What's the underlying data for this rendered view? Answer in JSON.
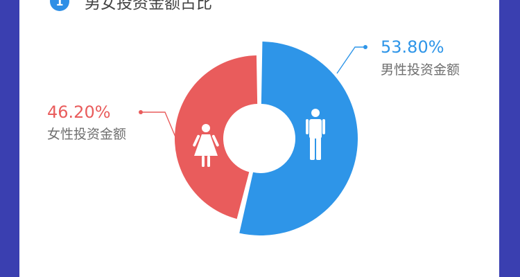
{
  "section": {
    "index": "1",
    "title": "男女投资金额占比"
  },
  "colors": {
    "male": "#2e95e8",
    "female": "#e95c5c",
    "background": "#3a3fb0",
    "card": "#ffffff"
  },
  "icons": {
    "male": "male-person-icon",
    "female": "female-person-icon"
  },
  "chart_data": {
    "type": "pie",
    "style": "donut",
    "slices": [
      {
        "label": "男性投资金额",
        "value": 53.8,
        "value_label": "53.80%",
        "color": "#2e95e8",
        "icon": "male-person-icon"
      },
      {
        "label": "女性投资金额",
        "value": 46.2,
        "value_label": "46.20%",
        "color": "#e95c5c",
        "icon": "female-person-icon"
      }
    ]
  }
}
